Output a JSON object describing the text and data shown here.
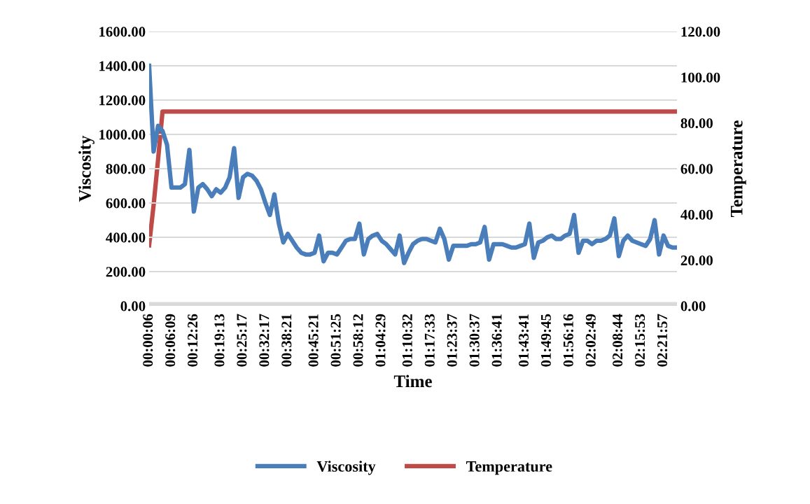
{
  "chart_data": {
    "type": "line",
    "xlabel": "Time",
    "ylabel": "Viscosity",
    "y2label": "Temperature",
    "categories": [
      "00:00:06",
      null,
      null,
      null,
      null,
      "00:06:09",
      null,
      null,
      null,
      null,
      "00:12:26",
      null,
      null,
      null,
      null,
      null,
      "00:19:13",
      null,
      null,
      null,
      null,
      "00:25:17",
      null,
      null,
      null,
      null,
      "00:32:17",
      null,
      null,
      null,
      null,
      "00:38:21",
      null,
      null,
      null,
      null,
      null,
      "00:45:21",
      null,
      null,
      null,
      null,
      "00:51:25",
      null,
      null,
      null,
      null,
      "00:58:12",
      null,
      null,
      null,
      null,
      "01:04:29",
      null,
      null,
      null,
      null,
      null,
      "01:10:32",
      null,
      null,
      null,
      null,
      "01:17:33",
      null,
      null,
      null,
      null,
      "01:23:37",
      null,
      null,
      null,
      null,
      "01:30:37",
      null,
      null,
      null,
      null,
      "01:36:41",
      null,
      null,
      null,
      null,
      null,
      "01:43:41",
      null,
      null,
      null,
      null,
      "01:49:45",
      null,
      null,
      null,
      null,
      "01:56:16",
      null,
      null,
      null,
      null,
      "02:02:49",
      null,
      null,
      null,
      null,
      null,
      "02:08:44",
      null,
      null,
      null,
      null,
      "02:15:53",
      null,
      null,
      null,
      null,
      "02:21:57",
      null,
      null,
      null
    ],
    "series": [
      {
        "name": "Viscosity",
        "color": "#4a7ebb",
        "values": [
          1400,
          900,
          1050,
          1020,
          940,
          690,
          690,
          690,
          710,
          910,
          550,
          690,
          710,
          680,
          640,
          680,
          660,
          690,
          750,
          920,
          630,
          750,
          770,
          760,
          730,
          680,
          600,
          530,
          650,
          480,
          370,
          420,
          380,
          340,
          310,
          300,
          300,
          310,
          410,
          260,
          310,
          310,
          300,
          340,
          380,
          390,
          390,
          480,
          300,
          390,
          410,
          420,
          380,
          360,
          330,
          300,
          410,
          250,
          310,
          360,
          380,
          390,
          390,
          380,
          370,
          450,
          390,
          270,
          350,
          350,
          350,
          350,
          360,
          360,
          370,
          460,
          270,
          360,
          360,
          360,
          350,
          340,
          340,
          350,
          360,
          480,
          280,
          370,
          380,
          400,
          410,
          390,
          390,
          410,
          420,
          530,
          310,
          380,
          380,
          360,
          380,
          380,
          390,
          410,
          510,
          290,
          380,
          410,
          380,
          370,
          360,
          350,
          390,
          500,
          300,
          410,
          350,
          340,
          340
        ]
      },
      {
        "name": "Temperature",
        "color": "#be4b48",
        "axis": "y2",
        "values": [
          26.5,
          44,
          64,
          85,
          85,
          85,
          85,
          85,
          85,
          85,
          85,
          85,
          85,
          85,
          85,
          85,
          85,
          85,
          85,
          85,
          85,
          85,
          85,
          85,
          85,
          85,
          85,
          85,
          85,
          85,
          85,
          85,
          85,
          85,
          85,
          85,
          85,
          85,
          85,
          85,
          85,
          85,
          85,
          85,
          85,
          85,
          85,
          85,
          85,
          85,
          85,
          85,
          85,
          85,
          85,
          85,
          85,
          85,
          85,
          85,
          85,
          85,
          85,
          85,
          85,
          85,
          85,
          85,
          85,
          85,
          85,
          85,
          85,
          85,
          85,
          85,
          85,
          85,
          85,
          85,
          85,
          85,
          85,
          85,
          85,
          85,
          85,
          85,
          85,
          85,
          85,
          85,
          85,
          85,
          85,
          85,
          85,
          85,
          85,
          85,
          85,
          85,
          85,
          85,
          85,
          85,
          85,
          85,
          85,
          85,
          85,
          85,
          85,
          85,
          85,
          85,
          85,
          85,
          85
        ]
      }
    ],
    "ylim": [
      0,
      1600
    ],
    "yticks": [
      {
        "value": 0,
        "label": "0.00"
      },
      {
        "value": 200,
        "label": "200.00"
      },
      {
        "value": 400,
        "label": "400.00"
      },
      {
        "value": 600,
        "label": "600.00"
      },
      {
        "value": 800,
        "label": "800.00"
      },
      {
        "value": 1000,
        "label": "1000.00"
      },
      {
        "value": 1200,
        "label": "1200.00"
      },
      {
        "value": 1400,
        "label": "1400.00"
      },
      {
        "value": 1600,
        "label": "1600.00"
      }
    ],
    "y2lim": [
      0,
      120
    ],
    "y2ticks": [
      {
        "value": 0,
        "label": "0.00"
      },
      {
        "value": 20,
        "label": "20.00"
      },
      {
        "value": 40,
        "label": "40.00"
      },
      {
        "value": 60,
        "label": "60.00"
      },
      {
        "value": 80,
        "label": "80.00"
      },
      {
        "value": 100,
        "label": "100.00"
      },
      {
        "value": 120,
        "label": "120.00"
      }
    ],
    "grid": "y",
    "legend": "bottom",
    "marker": "none",
    "line_style": "solid"
  }
}
